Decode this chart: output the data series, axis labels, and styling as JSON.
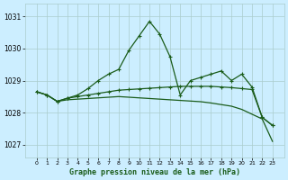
{
  "title": "Graphe pression niveau de la mer (hPa)",
  "background_color": "#cceeff",
  "grid_color": "#aacccc",
  "line_color": "#1a5c1a",
  "series": {
    "line1_x": [
      0,
      1,
      2,
      3,
      4,
      5,
      6,
      7,
      8,
      9,
      10,
      11,
      12,
      13,
      14,
      15,
      16,
      17,
      18,
      19,
      20,
      21,
      22,
      23
    ],
    "line1_y": [
      1028.65,
      1028.55,
      1028.35,
      1028.45,
      1028.55,
      1028.75,
      1029.0,
      1029.2,
      1029.35,
      1029.95,
      1030.4,
      1030.85,
      1030.45,
      1029.75,
      1028.55,
      1029.0,
      1029.1,
      1029.2,
      1029.3,
      1029.0,
      1029.2,
      1028.8,
      1027.85,
      1027.6
    ],
    "line2_x": [
      0,
      1,
      2,
      3,
      4,
      5,
      6,
      7,
      8,
      9,
      10,
      11,
      12,
      13,
      14,
      15,
      16,
      17,
      18,
      19,
      20,
      21,
      22,
      23
    ],
    "line2_y": [
      1028.65,
      1028.55,
      1028.35,
      1028.45,
      1028.5,
      1028.55,
      1028.6,
      1028.65,
      1028.7,
      1028.72,
      1028.74,
      1028.76,
      1028.78,
      1028.8,
      1028.82,
      1028.82,
      1028.82,
      1028.82,
      1028.8,
      1028.78,
      1028.75,
      1028.72,
      1027.85,
      1027.6
    ],
    "line3_x": [
      0,
      1,
      2,
      3,
      4,
      5,
      6,
      7,
      8,
      9,
      10,
      11,
      12,
      13,
      14,
      15,
      16,
      17,
      18,
      19,
      20,
      21,
      22,
      23
    ],
    "line3_y": [
      1028.65,
      1028.55,
      1028.35,
      1028.4,
      1028.42,
      1028.44,
      1028.46,
      1028.48,
      1028.5,
      1028.48,
      1028.46,
      1028.44,
      1028.42,
      1028.4,
      1028.38,
      1028.36,
      1028.34,
      1028.3,
      1028.25,
      1028.2,
      1028.1,
      1027.95,
      1027.8,
      1027.1
    ]
  },
  "x_values": [
    0,
    1,
    2,
    3,
    4,
    5,
    6,
    7,
    8,
    9,
    10,
    11,
    12,
    13,
    14,
    15,
    16,
    17,
    18,
    19,
    20,
    21,
    22,
    23
  ],
  "ylim": [
    1026.6,
    1031.4
  ],
  "yticks": [
    1027,
    1028,
    1029,
    1030,
    1031
  ],
  "xticks": [
    0,
    1,
    2,
    3,
    4,
    5,
    6,
    7,
    8,
    9,
    10,
    11,
    12,
    13,
    14,
    15,
    16,
    17,
    18,
    19,
    20,
    21,
    22,
    23
  ],
  "marker": "+",
  "marker_size": 3.5,
  "line_width": 0.9
}
